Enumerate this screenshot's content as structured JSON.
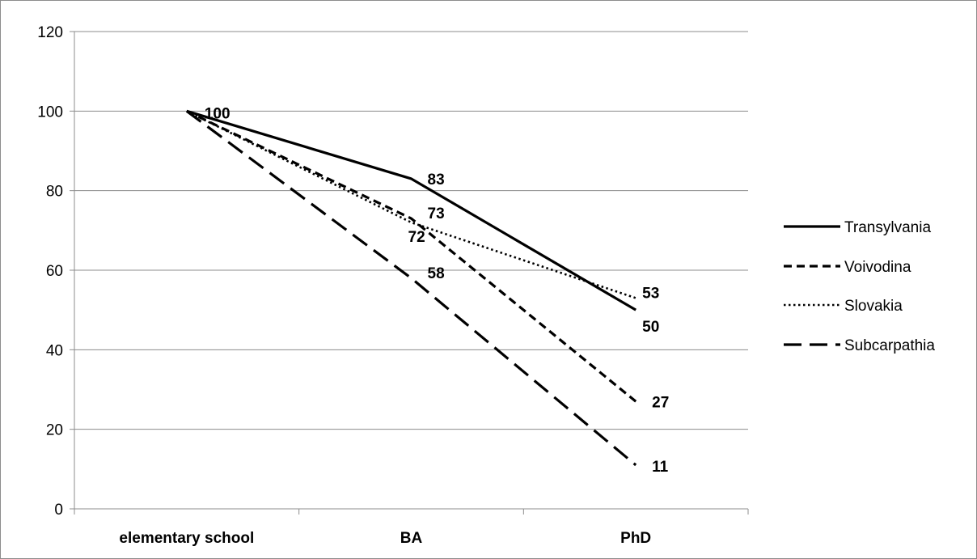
{
  "chart_data": {
    "type": "line",
    "title": "",
    "xlabel": "",
    "ylabel": "",
    "categories": [
      "elementary school",
      "BA",
      "PhD"
    ],
    "ylim": [
      0,
      120
    ],
    "yticks": [
      0,
      20,
      40,
      60,
      80,
      100,
      120
    ],
    "grid": true,
    "legend_position": "right",
    "series": [
      {
        "name": "Transylvania",
        "values": [
          100,
          83,
          50
        ],
        "labels": [
          "100",
          "83",
          "50"
        ],
        "style": "solid",
        "color": "#000000"
      },
      {
        "name": "Voivodina",
        "values": [
          100,
          73,
          27
        ],
        "labels": [
          "",
          "73",
          "27"
        ],
        "style": "short-dash",
        "color": "#000000"
      },
      {
        "name": "Slovakia",
        "values": [
          100,
          72,
          53
        ],
        "labels": [
          "",
          "72",
          "53"
        ],
        "style": "dotted",
        "color": "#000000"
      },
      {
        "name": "Subcarpathia",
        "values": [
          100,
          58,
          11
        ],
        "labels": [
          "",
          "58",
          "11"
        ],
        "style": "long-dash",
        "color": "#000000"
      }
    ]
  }
}
